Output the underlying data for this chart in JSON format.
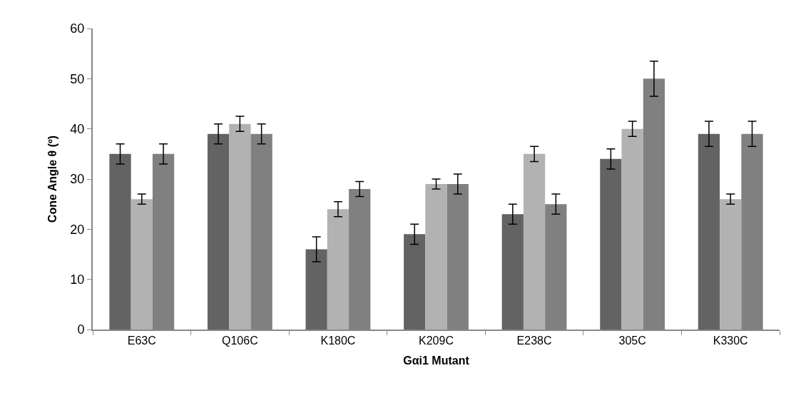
{
  "chart_data": {
    "type": "bar",
    "xlabel": "Gαi1 Mutant",
    "ylabel": "Cone Angle θ (º)",
    "categories": [
      "E63C",
      "Q106C",
      "K180C",
      "K209C",
      "E238C",
      "305C",
      "K330C"
    ],
    "series": [
      {
        "color": "#636363",
        "values": [
          35,
          39,
          16,
          19,
          23,
          34,
          39
        ],
        "errors": [
          2,
          2,
          2.5,
          2,
          2,
          2,
          2.5
        ]
      },
      {
        "color": "#b2b2b2",
        "values": [
          26,
          41,
          24,
          29,
          35,
          40,
          26
        ],
        "errors": [
          1,
          1.5,
          1.5,
          1,
          1.5,
          1.5,
          1
        ]
      },
      {
        "color": "#808080",
        "values": [
          35,
          39,
          28,
          29,
          25,
          50,
          39
        ],
        "errors": [
          2,
          2,
          1.5,
          2,
          2,
          3.5,
          2.5
        ]
      }
    ],
    "ylim": [
      0,
      60
    ],
    "yticks": [
      0,
      10,
      20,
      30,
      40,
      50,
      60
    ]
  }
}
